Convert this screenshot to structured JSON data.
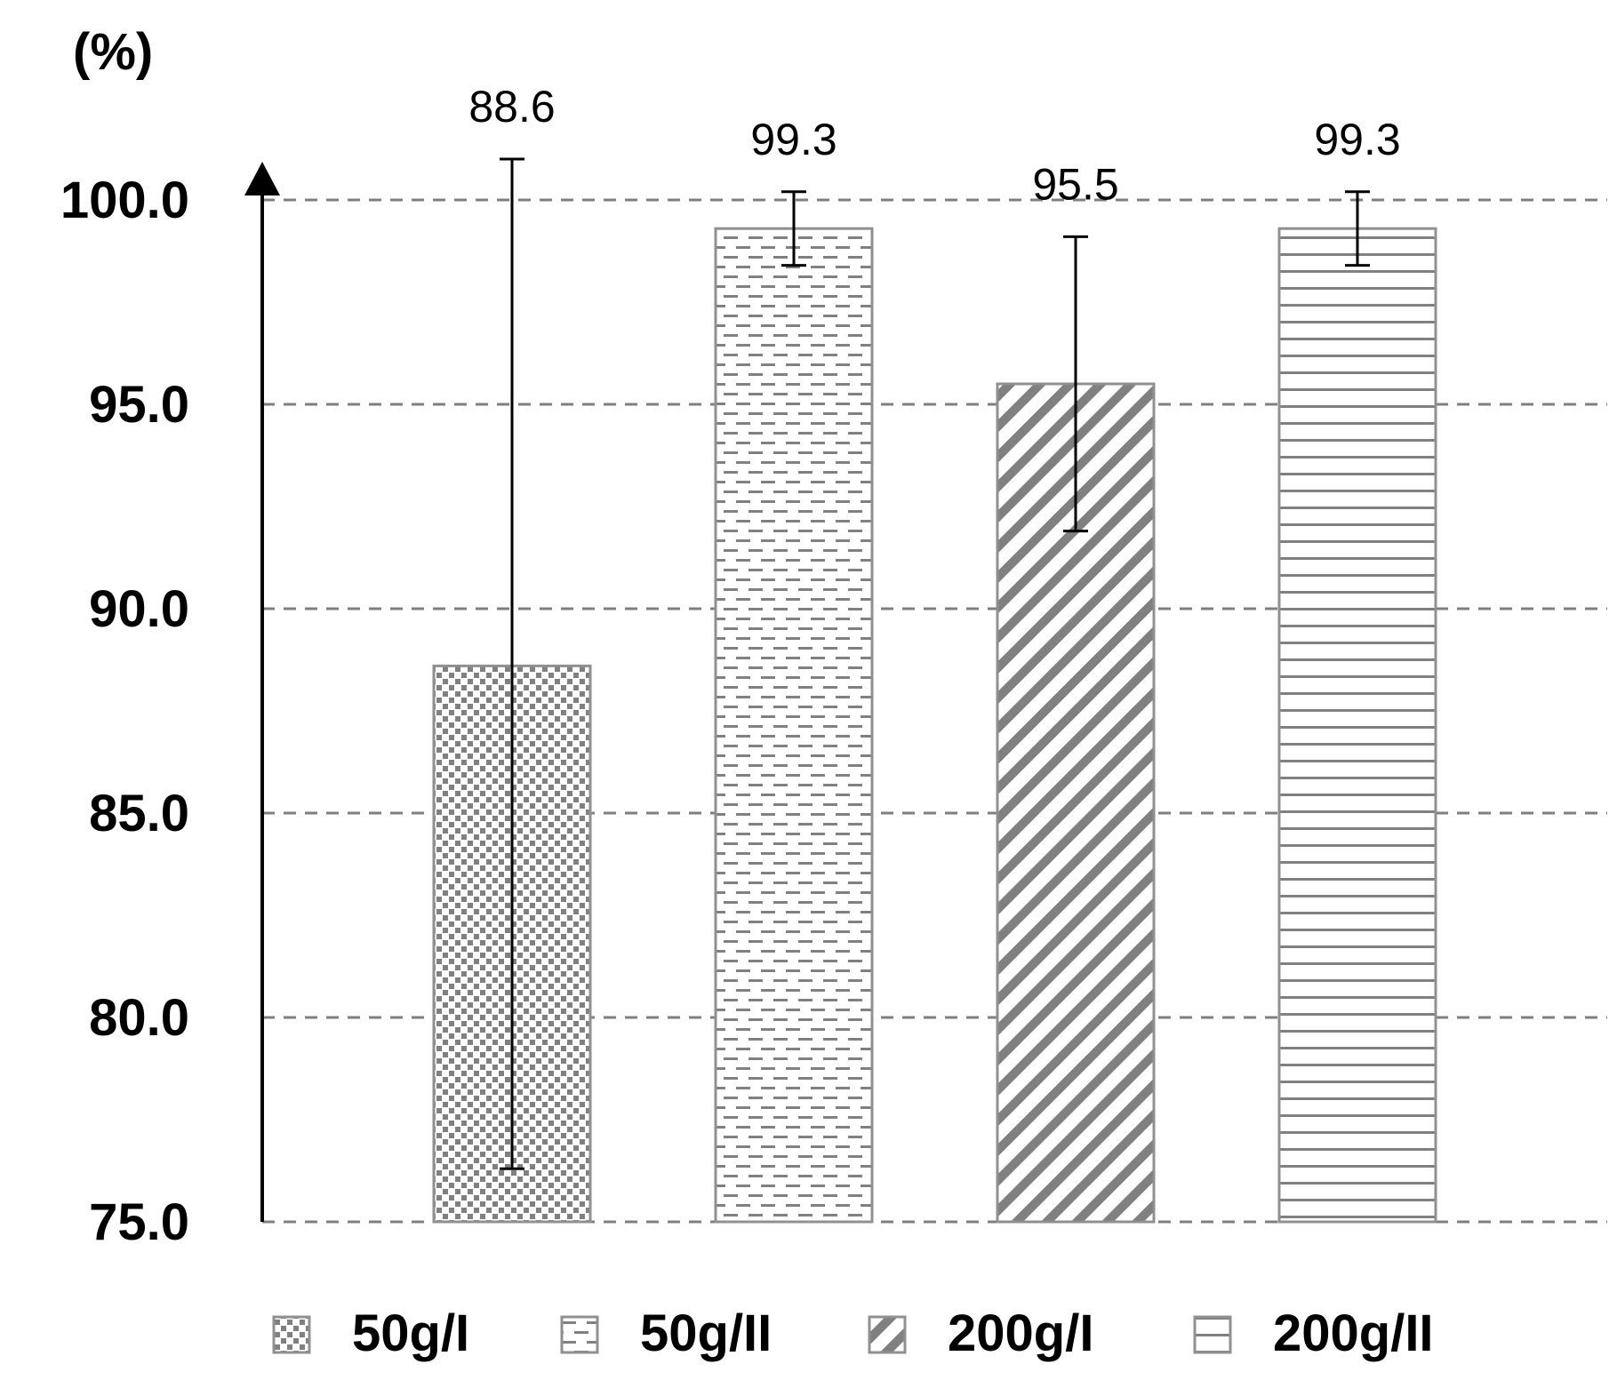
{
  "chart_data": {
    "type": "bar",
    "title": "",
    "xlabel": "",
    "ylabel": "(%)",
    "ylim": [
      75.0,
      100.0
    ],
    "yticks": [
      75.0,
      80.0,
      85.0,
      90.0,
      95.0,
      100.0
    ],
    "ytick_labels": [
      "75.0",
      "80.0",
      "85.0",
      "90.0",
      "95.0",
      "100.0"
    ],
    "grid": true,
    "legend_position": "bottom",
    "categories": [
      "50g/I",
      "50g/II",
      "200g/I",
      "200g/II"
    ],
    "values": [
      88.6,
      99.3,
      95.5,
      99.3
    ],
    "value_labels": [
      "88.6",
      "99.3",
      "95.5",
      "99.3"
    ],
    "error_low": [
      76.3,
      98.4,
      91.9,
      98.4
    ],
    "error_high": [
      101.0,
      100.2,
      99.1,
      100.2
    ],
    "patterns": [
      "dots",
      "dashes",
      "diagonal",
      "horizontal"
    ],
    "legend": [
      "50g/I",
      "50g/II",
      "200g/I",
      "200g/II"
    ]
  },
  "colors": {
    "pattern": "#808080",
    "bar_border": "#909090",
    "grid": "#7f7f7f",
    "axis": "#000000"
  }
}
